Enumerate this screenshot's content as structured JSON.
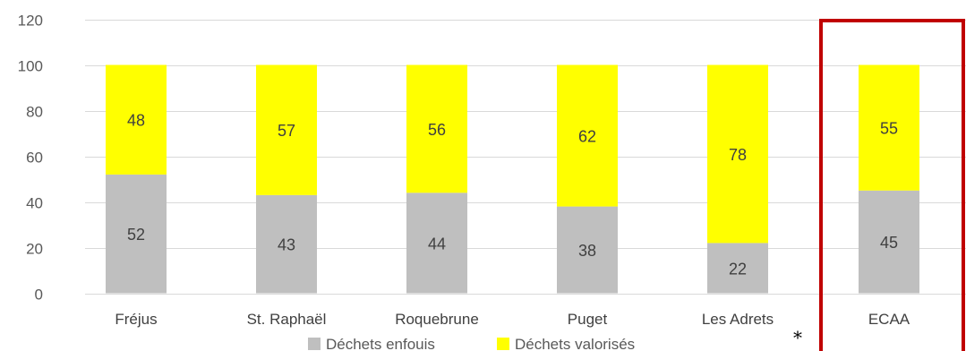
{
  "chart_data": {
    "type": "bar",
    "stacked": true,
    "categories": [
      "Fréjus",
      "St. Raphaël",
      "Roquebrune",
      "Puget",
      "Les Adrets",
      "ECAA"
    ],
    "series": [
      {
        "name": "Déchets enfouis",
        "values": [
          52,
          43,
          44,
          38,
          22,
          45
        ],
        "color": "#bfbfbf"
      },
      {
        "name": "Déchets valorisés",
        "values": [
          48,
          57,
          56,
          62,
          78,
          55
        ],
        "color": "#ffff00"
      }
    ],
    "ylim": [
      0,
      120
    ],
    "yticks": [
      0,
      20,
      40,
      60,
      80,
      100,
      120
    ],
    "grid": true,
    "legend_position": "bottom",
    "annotations": {
      "asterisk": "*"
    },
    "highlight_color": "#c00000",
    "highlight_category": "ECAA"
  }
}
